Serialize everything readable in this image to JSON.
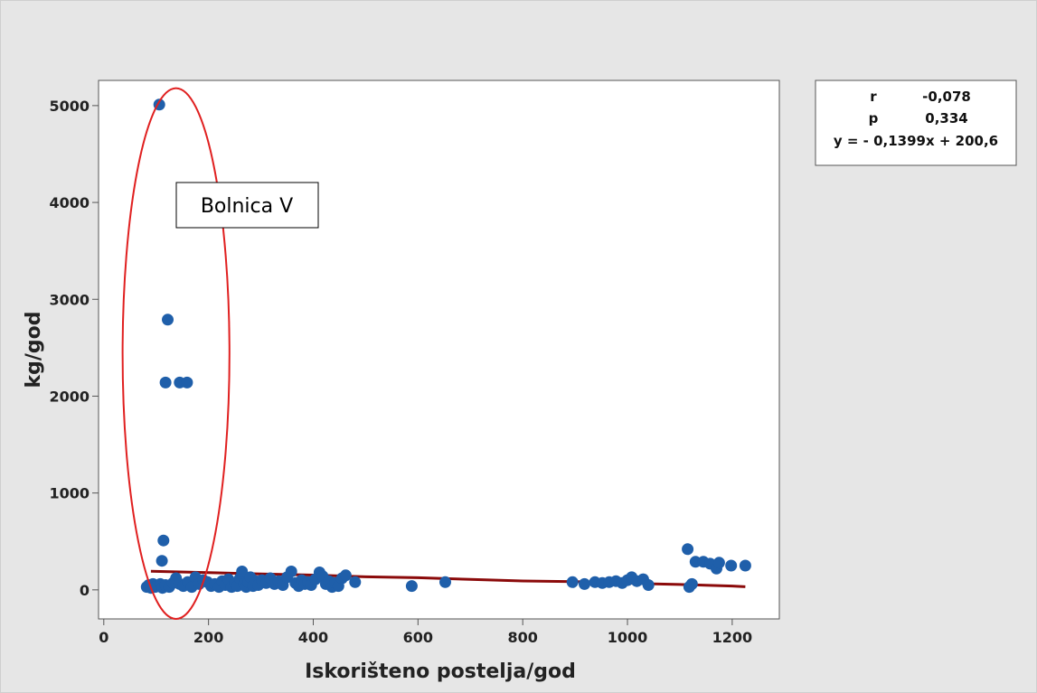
{
  "chart_data": {
    "type": "scatter",
    "title": "",
    "xlabel": "Iskorišteno postelja/god",
    "ylabel": "kg/god",
    "xlim": [
      -10,
      1290
    ],
    "ylim": [
      -300,
      5260
    ],
    "xticks": [
      0,
      200,
      400,
      600,
      800,
      1000,
      1200
    ],
    "yticks": [
      0,
      1000,
      2000,
      3000,
      4000,
      5000
    ],
    "grid": false,
    "point_color": "#1f5faa",
    "fit_color": "#8b0a0a",
    "annotation_color": "#e02020",
    "points": [
      {
        "x": 106,
        "y": 5010
      },
      {
        "x": 122,
        "y": 2790
      },
      {
        "x": 118,
        "y": 2140
      },
      {
        "x": 145,
        "y": 2140
      },
      {
        "x": 159,
        "y": 2140
      },
      {
        "x": 114,
        "y": 510
      },
      {
        "x": 111,
        "y": 300
      },
      {
        "x": 82,
        "y": 30
      },
      {
        "x": 86,
        "y": 50
      },
      {
        "x": 90,
        "y": 20
      },
      {
        "x": 94,
        "y": 60
      },
      {
        "x": 98,
        "y": 30
      },
      {
        "x": 102,
        "y": 40
      },
      {
        "x": 108,
        "y": 60
      },
      {
        "x": 112,
        "y": 20
      },
      {
        "x": 118,
        "y": 50
      },
      {
        "x": 125,
        "y": 30
      },
      {
        "x": 132,
        "y": 70
      },
      {
        "x": 138,
        "y": 120
      },
      {
        "x": 145,
        "y": 60
      },
      {
        "x": 152,
        "y": 40
      },
      {
        "x": 160,
        "y": 80
      },
      {
        "x": 168,
        "y": 30
      },
      {
        "x": 175,
        "y": 130
      },
      {
        "x": 182,
        "y": 60
      },
      {
        "x": 190,
        "y": 100
      },
      {
        "x": 198,
        "y": 80
      },
      {
        "x": 205,
        "y": 40
      },
      {
        "x": 212,
        "y": 60
      },
      {
        "x": 220,
        "y": 30
      },
      {
        "x": 226,
        "y": 90
      },
      {
        "x": 232,
        "y": 50
      },
      {
        "x": 238,
        "y": 110
      },
      {
        "x": 244,
        "y": 30
      },
      {
        "x": 250,
        "y": 70
      },
      {
        "x": 255,
        "y": 40
      },
      {
        "x": 260,
        "y": 120
      },
      {
        "x": 264,
        "y": 190
      },
      {
        "x": 268,
        "y": 60
      },
      {
        "x": 272,
        "y": 30
      },
      {
        "x": 276,
        "y": 80
      },
      {
        "x": 280,
        "y": 130
      },
      {
        "x": 285,
        "y": 40
      },
      {
        "x": 290,
        "y": 90
      },
      {
        "x": 295,
        "y": 50
      },
      {
        "x": 302,
        "y": 100
      },
      {
        "x": 310,
        "y": 70
      },
      {
        "x": 318,
        "y": 120
      },
      {
        "x": 326,
        "y": 60
      },
      {
        "x": 334,
        "y": 90
      },
      {
        "x": 342,
        "y": 50
      },
      {
        "x": 350,
        "y": 130
      },
      {
        "x": 358,
        "y": 190
      },
      {
        "x": 366,
        "y": 70
      },
      {
        "x": 372,
        "y": 40
      },
      {
        "x": 378,
        "y": 100
      },
      {
        "x": 384,
        "y": 60
      },
      {
        "x": 390,
        "y": 80
      },
      {
        "x": 396,
        "y": 50
      },
      {
        "x": 404,
        "y": 110
      },
      {
        "x": 412,
        "y": 180
      },
      {
        "x": 418,
        "y": 140
      },
      {
        "x": 424,
        "y": 60
      },
      {
        "x": 430,
        "y": 90
      },
      {
        "x": 436,
        "y": 30
      },
      {
        "x": 442,
        "y": 70
      },
      {
        "x": 448,
        "y": 40
      },
      {
        "x": 455,
        "y": 120
      },
      {
        "x": 462,
        "y": 150
      },
      {
        "x": 480,
        "y": 80
      },
      {
        "x": 588,
        "y": 40
      },
      {
        "x": 652,
        "y": 80
      },
      {
        "x": 895,
        "y": 80
      },
      {
        "x": 918,
        "y": 60
      },
      {
        "x": 938,
        "y": 80
      },
      {
        "x": 952,
        "y": 70
      },
      {
        "x": 965,
        "y": 80
      },
      {
        "x": 978,
        "y": 90
      },
      {
        "x": 990,
        "y": 70
      },
      {
        "x": 1000,
        "y": 100
      },
      {
        "x": 1008,
        "y": 130
      },
      {
        "x": 1018,
        "y": 90
      },
      {
        "x": 1030,
        "y": 110
      },
      {
        "x": 1040,
        "y": 50
      },
      {
        "x": 1115,
        "y": 420
      },
      {
        "x": 1118,
        "y": 30
      },
      {
        "x": 1123,
        "y": 60
      },
      {
        "x": 1130,
        "y": 290
      },
      {
        "x": 1145,
        "y": 290
      },
      {
        "x": 1158,
        "y": 270
      },
      {
        "x": 1170,
        "y": 220
      },
      {
        "x": 1175,
        "y": 280
      },
      {
        "x": 1198,
        "y": 250
      },
      {
        "x": 1225,
        "y": 250
      }
    ],
    "fit_line": {
      "points": [
        {
          "x": 90,
          "y": 193
        },
        {
          "x": 200,
          "y": 178
        },
        {
          "x": 300,
          "y": 165
        },
        {
          "x": 400,
          "y": 152
        },
        {
          "x": 500,
          "y": 135
        },
        {
          "x": 600,
          "y": 125
        },
        {
          "x": 700,
          "y": 108
        },
        {
          "x": 800,
          "y": 92
        },
        {
          "x": 900,
          "y": 85
        },
        {
          "x": 1000,
          "y": 70
        },
        {
          "x": 1050,
          "y": 62
        },
        {
          "x": 1100,
          "y": 55
        },
        {
          "x": 1150,
          "y": 48
        },
        {
          "x": 1200,
          "y": 40
        },
        {
          "x": 1225,
          "y": 32
        }
      ]
    },
    "annotations": {
      "ellipse": {
        "cx": 138,
        "cy": 2440,
        "rx": 102,
        "ry": 2740
      },
      "label_box": "Bolnica V"
    },
    "stats_box": {
      "r_label": "r",
      "r_value": "-0,078",
      "p_label": "p",
      "p_value": "0,334",
      "equation": "y = - 0,1399x + 200,6"
    }
  }
}
